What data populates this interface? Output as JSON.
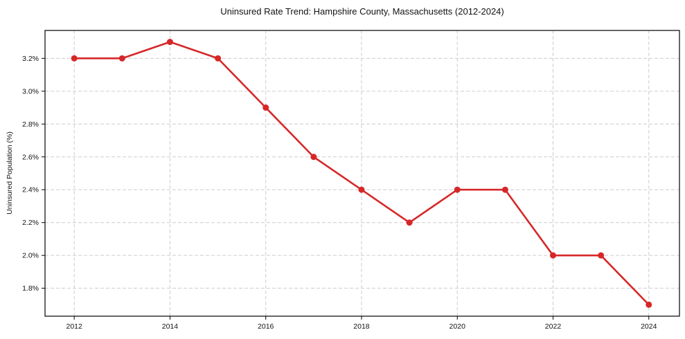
{
  "figure": {
    "background": "#ffffff",
    "text_color": "#111111"
  },
  "chart_data": {
    "type": "line",
    "title": "Uninsured Rate Trend: Hampshire County, Massachusetts (2012-2024)",
    "xlabel": "",
    "ylabel": "Uninsured Population (%)",
    "x": [
      2012,
      2013,
      2014,
      2015,
      2016,
      2017,
      2018,
      2019,
      2020,
      2021,
      2022,
      2023,
      2024
    ],
    "series": [
      {
        "values": [
          3.2,
          3.2,
          3.3,
          3.2,
          2.9,
          2.6,
          2.4,
          2.2,
          2.4,
          2.4,
          2.0,
          2.0,
          1.7
        ],
        "color": "#d62728",
        "marker": "circle"
      }
    ],
    "x_ticks": [
      2012,
      2014,
      2016,
      2018,
      2020,
      2022,
      2024
    ],
    "y_ticks": [
      1.8,
      2.0,
      2.2,
      2.4,
      2.6,
      2.8,
      3.0,
      3.2
    ],
    "y_tick_suffix": "%",
    "xlim": [
      2011.39,
      2024.64
    ],
    "ylim": [
      1.63,
      3.37
    ],
    "grid": true,
    "grid_color": "#cccccc",
    "grid_style": "dashed",
    "spine_color": "#000000",
    "legend_position": "none"
  }
}
